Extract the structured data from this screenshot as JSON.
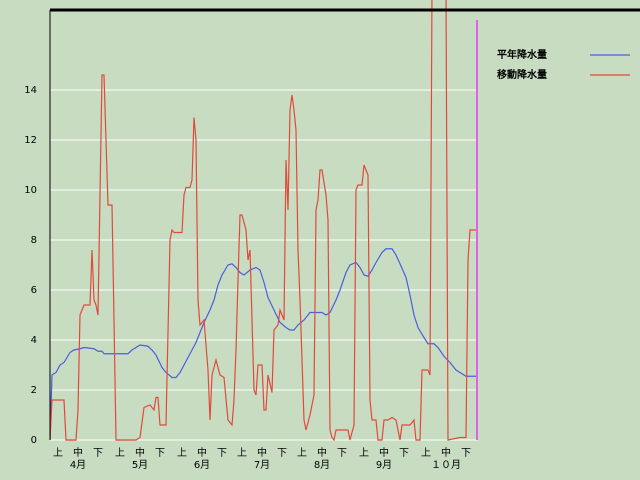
{
  "chart_data": {
    "type": "line",
    "xlim": [
      0,
      214
    ],
    "ylim": [
      0,
      17.2
    ],
    "yticks": [
      0,
      2,
      4,
      6,
      8,
      10,
      12,
      14
    ],
    "grid": true,
    "legend": "top-right",
    "xticks": [
      {
        "value": 4,
        "label": "上"
      },
      {
        "value": 14,
        "label": "中"
      },
      {
        "value": 24,
        "label": "下"
      },
      {
        "value": 35,
        "label": "上"
      },
      {
        "value": 45,
        "label": "中"
      },
      {
        "value": 55,
        "label": "下"
      },
      {
        "value": 66,
        "label": "上"
      },
      {
        "value": 76,
        "label": "中"
      },
      {
        "value": 86,
        "label": "下"
      },
      {
        "value": 96,
        "label": "上"
      },
      {
        "value": 106,
        "label": "中"
      },
      {
        "value": 116,
        "label": "下"
      },
      {
        "value": 126,
        "label": "上"
      },
      {
        "value": 136,
        "label": "中"
      },
      {
        "value": 146,
        "label": "下"
      },
      {
        "value": 157,
        "label": "上"
      },
      {
        "value": 167,
        "label": "中"
      },
      {
        "value": 177,
        "label": "下"
      },
      {
        "value": 188,
        "label": "上"
      },
      {
        "value": 198,
        "label": "中"
      },
      {
        "value": 208,
        "label": "下"
      }
    ],
    "month_labels": [
      {
        "value": 14,
        "label": "4月"
      },
      {
        "value": 45,
        "label": "5月"
      },
      {
        "value": 76,
        "label": "6月"
      },
      {
        "value": 106,
        "label": "7月"
      },
      {
        "value": 136,
        "label": "8月"
      },
      {
        "value": 167,
        "label": "9月"
      },
      {
        "value": 198,
        "label": "１０月"
      }
    ],
    "series": [
      {
        "name": "平年降水量",
        "color": "#4a5ee0",
        "x": [
          0,
          1,
          3,
          5,
          7,
          10,
          12,
          15,
          17,
          22,
          24,
          26,
          27,
          39,
          41,
          43,
          45,
          49,
          51,
          53,
          56,
          58,
          61,
          63,
          65,
          69,
          73,
          75,
          77,
          80,
          82,
          84,
          86,
          89,
          91,
          93,
          95,
          97,
          100,
          103,
          105,
          107,
          109,
          112,
          115,
          118,
          120,
          122,
          124,
          127,
          130,
          133,
          136,
          138,
          140,
          143,
          145,
          148,
          150,
          153,
          155,
          157,
          159,
          161,
          163,
          166,
          168,
          171,
          173,
          175,
          178,
          180,
          182,
          184,
          187,
          189,
          192,
          194,
          197,
          200,
          203,
          205,
          208,
          214
        ],
        "values": [
          0,
          2.6,
          2.7,
          3,
          3.1,
          3.5,
          3.6,
          3.65,
          3.7,
          3.65,
          3.55,
          3.55,
          3.45,
          3.45,
          3.6,
          3.7,
          3.8,
          3.75,
          3.6,
          3.4,
          2.9,
          2.7,
          2.5,
          2.5,
          2.7,
          3.3,
          3.9,
          4.3,
          4.7,
          5.2,
          5.6,
          6.2,
          6.6,
          7,
          7.05,
          6.9,
          6.7,
          6.6,
          6.8,
          6.9,
          6.8,
          6.3,
          5.7,
          5.2,
          4.7,
          4.5,
          4.4,
          4.4,
          4.6,
          4.8,
          5.1,
          5.1,
          5.1,
          5,
          5.1,
          5.6,
          6,
          6.7,
          7,
          7.1,
          6.9,
          6.6,
          6.55,
          6.8,
          7.1,
          7.5,
          7.65,
          7.65,
          7.4,
          7.05,
          6.5,
          5.8,
          5,
          4.5,
          4.1,
          3.85,
          3.85,
          3.7,
          3.35,
          3.1,
          2.8,
          2.7,
          2.55,
          2.55
        ]
      },
      {
        "name": "移動降水量",
        "color": "#e04a3c",
        "x": [
          0,
          1,
          7,
          8,
          13,
          14,
          15,
          17,
          20,
          21,
          22,
          23,
          24,
          26,
          27,
          29,
          31,
          32,
          33,
          43,
          45,
          47,
          50,
          52,
          53,
          54,
          55,
          58,
          60,
          61,
          62,
          66,
          67,
          68,
          70,
          71,
          72,
          73,
          74,
          75,
          77,
          79,
          80,
          81,
          83,
          85,
          87,
          89,
          91,
          92,
          93,
          94,
          95,
          96,
          98,
          99,
          100,
          102,
          103,
          104,
          106,
          107,
          108,
          109,
          111,
          112,
          114,
          115,
          117,
          118,
          119,
          120,
          121,
          122,
          123,
          124,
          125,
          127,
          128,
          130,
          132,
          133,
          134,
          135,
          136,
          138,
          139,
          140,
          141,
          142,
          143,
          145,
          149,
          150,
          152,
          153,
          154,
          156,
          157,
          159,
          160,
          161,
          163,
          164,
          166,
          167,
          169,
          171,
          173,
          174,
          175,
          176,
          180,
          182,
          183,
          185,
          186,
          189,
          190,
          191,
          198,
          199,
          205,
          208,
          209,
          210,
          213
        ],
        "values": [
          0,
          1.6,
          1.6,
          0,
          0,
          1.2,
          5,
          5.4,
          5.4,
          7.6,
          5.6,
          5.4,
          5,
          14.6,
          14.6,
          9.4,
          9.4,
          4.8,
          0,
          0,
          0.1,
          1.3,
          1.4,
          1.2,
          1.7,
          1.7,
          0.6,
          0.6,
          8,
          8.4,
          8.3,
          8.3,
          9.8,
          10.1,
          10.1,
          10.4,
          12.9,
          12,
          5.6,
          4.6,
          4.8,
          2.8,
          0.8,
          2.6,
          3.2,
          2.6,
          2.5,
          0.8,
          0.6,
          1.6,
          3.6,
          6.4,
          9,
          9,
          8.4,
          7.2,
          7.6,
          2,
          1.8,
          3,
          3,
          1.2,
          1.2,
          2.6,
          1.9,
          4.4,
          4.6,
          5.2,
          4.8,
          11.2,
          9.2,
          13.2,
          13.8,
          13.2,
          12.4,
          7.6,
          5.6,
          0.8,
          0.4,
          1,
          1.8,
          9.2,
          9.6,
          10.8,
          10.8,
          9.8,
          8.8,
          0.4,
          0.1,
          0,
          0.4,
          0.4,
          0.4,
          0,
          0.6,
          10,
          10.2,
          10.2,
          11,
          10.6,
          1.6,
          0.8,
          0.8,
          0,
          0,
          0.8,
          0.8,
          0.9,
          0.8,
          0.4,
          0,
          0.6,
          0.6,
          0.8,
          0,
          0,
          2.8,
          2.8,
          2.6,
          18,
          18,
          0,
          0.1,
          0.1,
          7.2,
          8.4,
          8.4
        ]
      }
    ]
  }
}
